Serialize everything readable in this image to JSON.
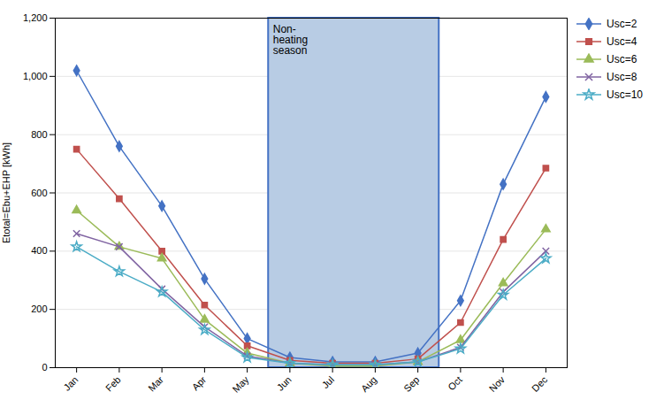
{
  "chart_data": {
    "type": "line",
    "categories": [
      "Jan",
      "Feb",
      "Mar",
      "Apr",
      "May",
      "Jun",
      "Jul",
      "Aug",
      "Sep",
      "Oct",
      "Nov",
      "Dec"
    ],
    "series": [
      {
        "name": "Usc=2",
        "color": "#4472C4",
        "marker": "diamond",
        "values": [
          1020,
          760,
          555,
          305,
          100,
          35,
          20,
          20,
          50,
          230,
          630,
          930
        ]
      },
      {
        "name": "Usc=4",
        "color": "#C0504D",
        "marker": "square",
        "values": [
          750,
          580,
          400,
          215,
          75,
          25,
          15,
          15,
          30,
          155,
          440,
          685
        ]
      },
      {
        "name": "Usc=6",
        "color": "#9BBB59",
        "marker": "triangle",
        "values": [
          540,
          415,
          375,
          165,
          50,
          15,
          5,
          5,
          20,
          95,
          290,
          475
        ]
      },
      {
        "name": "Usc=8",
        "color": "#8064A2",
        "marker": "x",
        "values": [
          460,
          415,
          270,
          140,
          40,
          15,
          10,
          10,
          20,
          70,
          260,
          400
        ]
      },
      {
        "name": "Usc=10",
        "color": "#4BACC6",
        "marker": "star",
        "values": [
          415,
          330,
          260,
          130,
          35,
          15,
          10,
          10,
          20,
          65,
          250,
          375
        ]
      }
    ],
    "ylabel": "Etotal=Ebu+EHP [kWh]",
    "ylim": [
      0,
      1200
    ],
    "yticks": [
      0,
      200,
      400,
      600,
      800,
      1000,
      1200
    ],
    "grid": true,
    "legend": "right",
    "annotations": [
      {
        "text": "Non-\nheating\nseason",
        "span": [
          "Jun",
          "Sep"
        ],
        "color": "#B8CCE4",
        "edge_color": "#4472C4"
      }
    ]
  }
}
